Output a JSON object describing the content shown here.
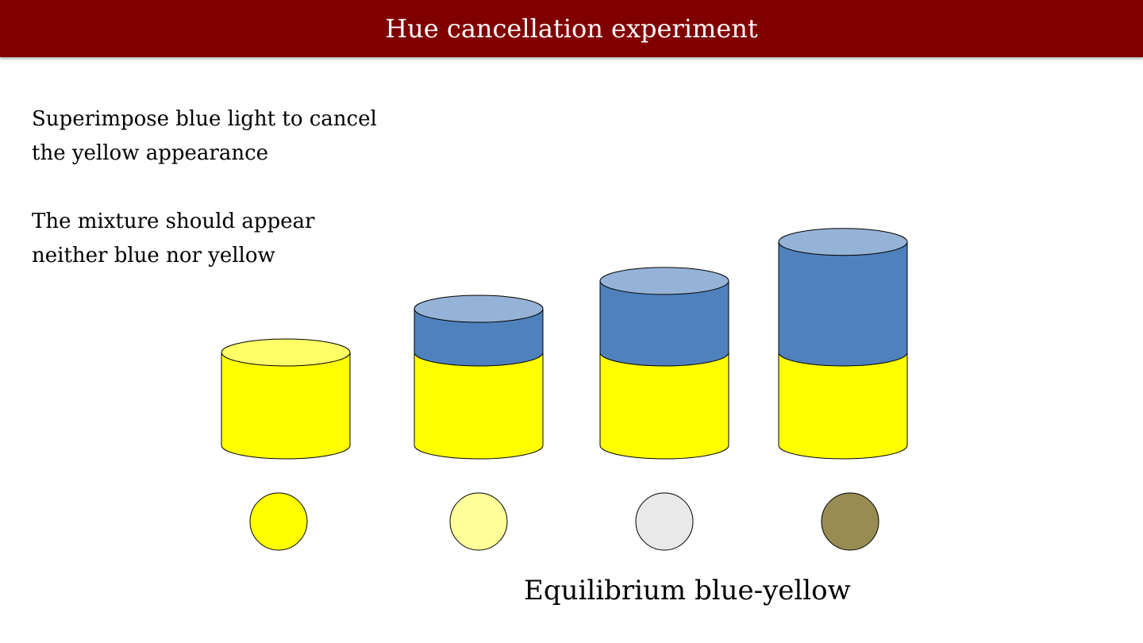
{
  "title": "Hue cancellation experiment",
  "instructions": {
    "line1": "Superimpose blue light to cancel",
    "line2": "the yellow appearance",
    "line3": "The mixture should appear",
    "line4": "neither blue nor yellow"
  },
  "caption": "Equilibrium blue-yellow",
  "colors": {
    "title_bar": "#800000",
    "yellow_body": "#ffff00",
    "yellow_top": "#ffff66",
    "blue_body": "#4f81bd",
    "blue_top": "#95b3d7"
  },
  "cylinders": [
    {
      "name": "cylinder-yellow-only",
      "yellow_units": 1,
      "blue_units": 0
    },
    {
      "name": "cylinder-small-blue",
      "yellow_units": 1,
      "blue_units": 0.47
    },
    {
      "name": "cylinder-medium-blue",
      "yellow_units": 1,
      "blue_units": 0.77
    },
    {
      "name": "cylinder-large-blue",
      "yellow_units": 1,
      "blue_units": 1.19
    }
  ],
  "swatches": [
    {
      "name": "swatch-yellow",
      "color": "#ffff00"
    },
    {
      "name": "swatch-pale-yellow",
      "color": "#ffff99"
    },
    {
      "name": "swatch-neutral-gray",
      "color": "#e9e9e9"
    },
    {
      "name": "swatch-olive",
      "color": "#988c52"
    }
  ]
}
